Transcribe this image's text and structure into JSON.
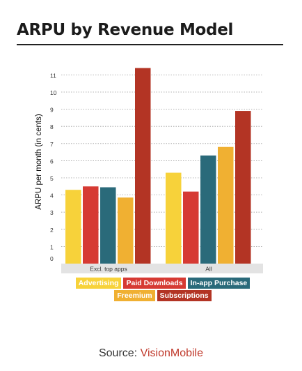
{
  "title": "ARPU by Revenue Model",
  "source": {
    "prefix": "Source: ",
    "name": "VisionMobile"
  },
  "colors": {
    "Advertising": "#f7d23a",
    "Paid Downloads": "#d63a33",
    "In-app Purchase": "#2a6a7a",
    "Freemium": "#f0b032",
    "Subscriptions": "#b33424"
  },
  "chart_data": {
    "type": "bar",
    "ylabel": "ARPU per month (in cents)",
    "ylim": [
      0,
      11
    ],
    "yticks": [
      "0",
      "1",
      "2",
      "3",
      "4",
      "5",
      "6",
      "7",
      "8",
      "9",
      "10",
      "11"
    ],
    "grid": "dotted horizontal",
    "legend": "bottom",
    "categories": [
      "Excl. top apps",
      "All"
    ],
    "series": [
      {
        "name": "Advertising",
        "values": [
          4.3,
          5.3
        ]
      },
      {
        "name": "Paid Downloads",
        "values": [
          4.5,
          4.2
        ]
      },
      {
        "name": "In-app Purchase",
        "values": [
          4.45,
          6.3
        ]
      },
      {
        "name": "Freemium",
        "values": [
          3.85,
          6.8
        ]
      },
      {
        "name": "Subscriptions",
        "values": [
          11.4,
          8.9
        ]
      }
    ]
  }
}
